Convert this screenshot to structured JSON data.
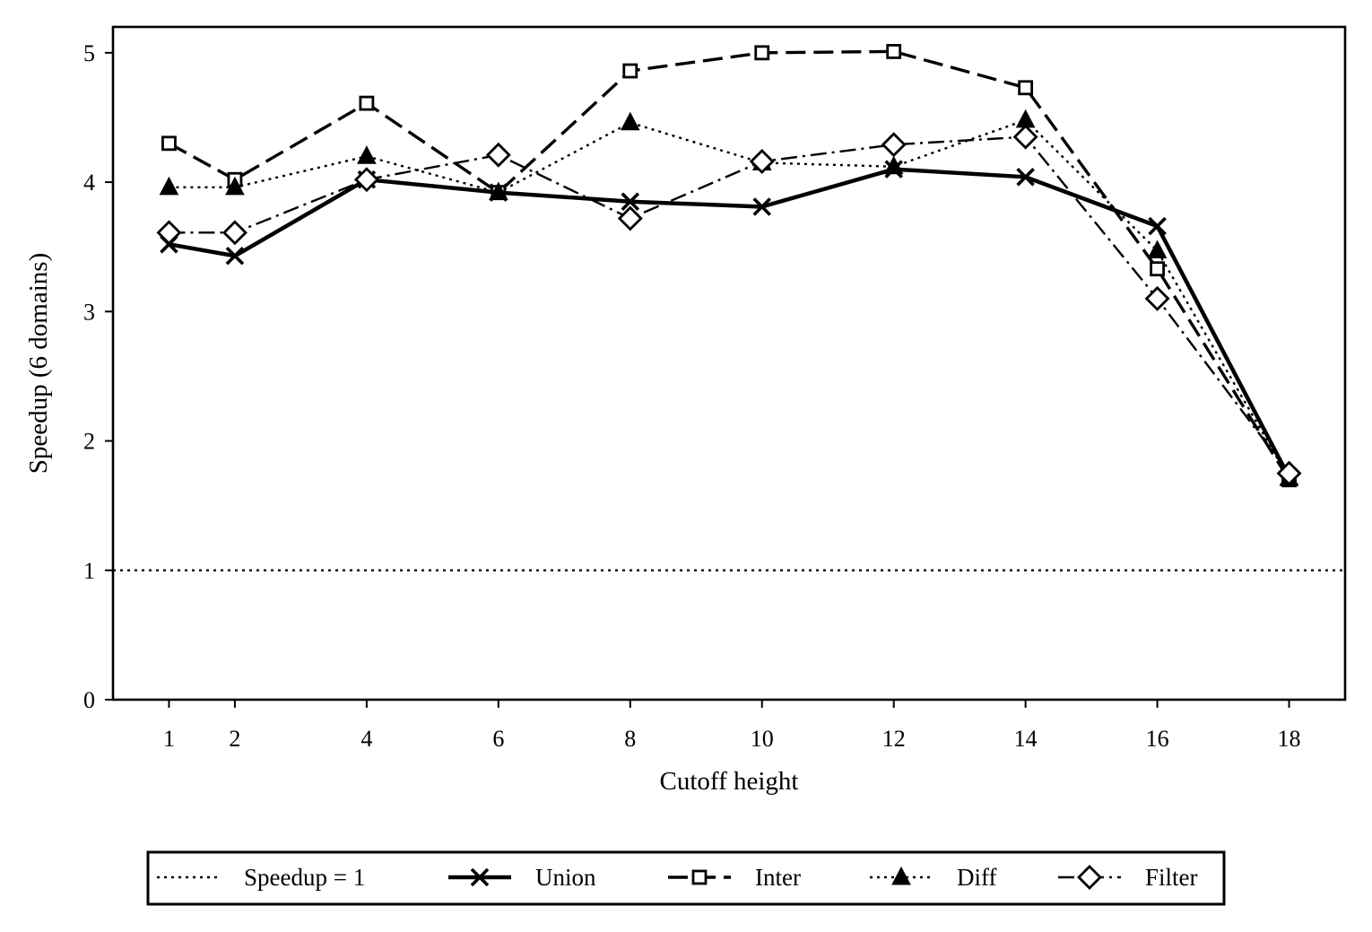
{
  "chart_data": {
    "type": "line",
    "title": "",
    "xlabel": "Cutoff height",
    "ylabel": "Speedup (6 domains)",
    "x": [
      1,
      2,
      4,
      6,
      8,
      10,
      12,
      14,
      16,
      18
    ],
    "xticks": [
      "1",
      "2",
      "4",
      "6",
      "8",
      "10",
      "12",
      "14",
      "16",
      "18"
    ],
    "yticks": [
      "0",
      "1",
      "2",
      "3",
      "4",
      "5"
    ],
    "xlim": [
      0.15,
      18.85
    ],
    "ylim": [
      0,
      5.2
    ],
    "grid": false,
    "legend_position": "bottom",
    "reference_line": {
      "name": "Speedup = 1",
      "y": 1
    },
    "series": [
      {
        "name": "Union",
        "marker": "x-icon",
        "line": "solid",
        "values": [
          3.52,
          3.43,
          4.02,
          3.92,
          3.85,
          3.81,
          4.1,
          4.04,
          3.66,
          1.72
        ]
      },
      {
        "name": "Inter",
        "marker": "square-icon",
        "line": "dashed",
        "values": [
          4.3,
          4.02,
          4.61,
          3.92,
          4.86,
          5.0,
          5.01,
          4.73,
          3.33,
          1.7
        ]
      },
      {
        "name": "Diff",
        "marker": "triangle-icon",
        "line": "dotted",
        "values": [
          3.96,
          3.96,
          4.2,
          3.92,
          4.46,
          4.15,
          4.12,
          4.48,
          3.47,
          1.71
        ]
      },
      {
        "name": "Filter",
        "marker": "diamond-icon",
        "line": "dash-dot",
        "values": [
          3.61,
          3.61,
          4.02,
          4.21,
          3.72,
          4.16,
          4.29,
          4.35,
          3.1,
          1.75
        ]
      }
    ]
  }
}
